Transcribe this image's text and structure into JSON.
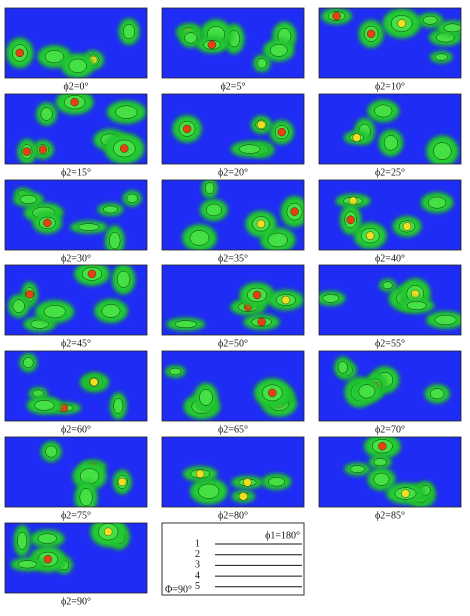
{
  "panels": [
    {
      "label": "ϕ2=0°"
    },
    {
      "label": "ϕ2=5°"
    },
    {
      "label": "ϕ2=10°"
    },
    {
      "label": "ϕ2=15°"
    },
    {
      "label": "ϕ2=20°"
    },
    {
      "label": "ϕ2=25°"
    },
    {
      "label": "ϕ2=30°"
    },
    {
      "label": "ϕ2=35°"
    },
    {
      "label": "ϕ2=40°"
    },
    {
      "label": "ϕ2=45°"
    },
    {
      "label": "ϕ2=50°"
    },
    {
      "label": "ϕ2=55°"
    },
    {
      "label": "ϕ2=60°"
    },
    {
      "label": "ϕ2=65°"
    },
    {
      "label": "ϕ2=70°"
    },
    {
      "label": "ϕ2=75°"
    },
    {
      "label": "ϕ2=80°"
    },
    {
      "label": "ϕ2=85°"
    },
    {
      "label": "ϕ2=90°"
    }
  ],
  "legend": {
    "phi1": "ϕ1=180°",
    "Phi": "Φ=90°",
    "levels": [
      "1",
      "2",
      "3",
      "4",
      "5"
    ]
  }
}
